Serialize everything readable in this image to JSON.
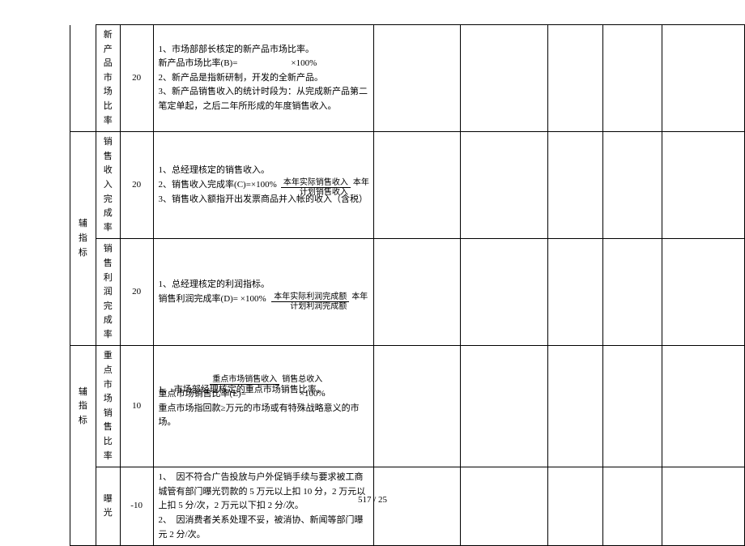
{
  "groups": [
    {
      "label": [
        "辅",
        "指",
        "标"
      ],
      "rows": 2
    },
    {
      "label": [
        "辅",
        "指",
        "标"
      ],
      "rows": 1
    }
  ],
  "rows": [
    {
      "name": "新产品市场比率",
      "weight": "20",
      "lines": [
        "1、市场部部长核定的新产品市场比率。",
        "新产品市场比率(B)=　　　　　　×100%",
        "2、新产品是指新研制，开发的全新产品。",
        "3、新产品销售收入的统计时段为：从完成新产品第二笔定单起，之后二年所形成的年度销售收入。"
      ]
    },
    {
      "name": "销售收入完成率",
      "weight": "20",
      "lines": [
        "1、总经理核定的销售收入。",
        "2、销售收入完成率(C)=×100%",
        "3、销售收入额指开出发票商品并入帐的收入（含税）"
      ],
      "frac": {
        "top": "本年实际销售收入",
        "bottom": "本年计划销售收入",
        "at": 1
      }
    },
    {
      "name": "销售利润完成率",
      "weight": "20",
      "lines": [
        "1、总经理核定的利润指标。",
        "销售利润完成率(D)= ×100%"
      ],
      "frac": {
        "top": "本年实际利润完成额",
        "bottom": "本年计划利润完成额",
        "at": 1
      }
    },
    {
      "name": "重点市场销售比率",
      "weight": "10",
      "lines": [
        "1、 市场部经理核定的重点市场销售比率。",
        "重点市场销售比率(E)=　　　　　　×100%",
        "重点市场指回款≥万元的市场或有特殊战略意义的市场。"
      ],
      "frac": {
        "top": "重点市场销售收入",
        "bottom": "销售总收入",
        "at": 0,
        "after": true
      }
    },
    {
      "name": "曝光",
      "weight": "-10",
      "lines": [
        "1、　因不符合广告投放与户外促销手续与要求被工商城管有部门曝光罚款的 5 万元以上扣 10 分，2 万元以上扣 5 分/次，2 万元以下扣 2 分/次。",
        "2、　因消费者关系处理不妥，被消协、新闻等部门曝元 2 分/次。"
      ]
    }
  ],
  "pageno": "517 / 25"
}
